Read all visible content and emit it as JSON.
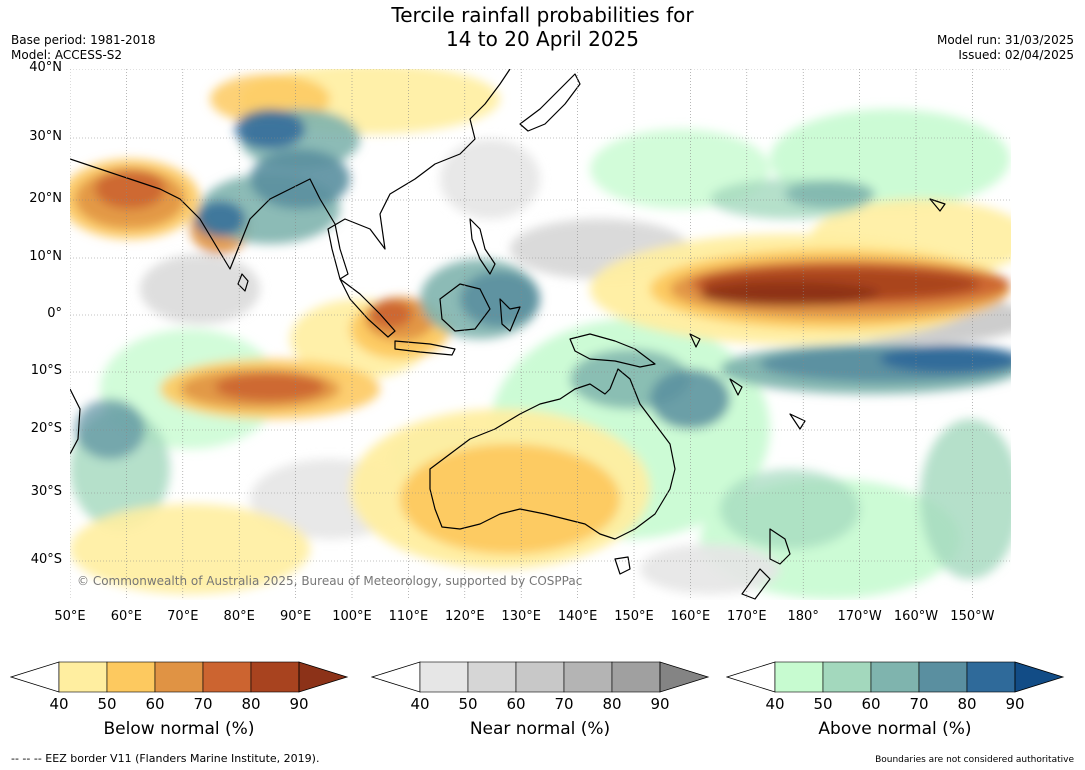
{
  "header": {
    "title_line1": "Tercile rainfall probabilities for",
    "title_line2": "14 to 20 April 2025",
    "base_period": "Base period: 1981-2018",
    "model": "Model: ACCESS-S2",
    "model_run": "Model run: 31/03/2025",
    "issued": "Issued: 02/04/2025"
  },
  "map": {
    "lat_labels": [
      "40°N",
      "30°N",
      "20°N",
      "10°N",
      "0°",
      "10°S",
      "20°S",
      "30°S",
      "40°S"
    ],
    "lon_labels": [
      "50°E",
      "60°E",
      "70°E",
      "80°E",
      "90°E",
      "100°E",
      "110°E",
      "120°E",
      "130°E",
      "140°E",
      "150°E",
      "160°E",
      "170°E",
      "180°",
      "170°W",
      "160°W",
      "150°W"
    ],
    "copyright": "© Commonwealth of Australia 2025, Bureau of Meteorology, supported by COSPPac"
  },
  "legend": {
    "below": {
      "label": "Below normal (%)",
      "ticks": [
        "40",
        "50",
        "60",
        "70",
        "80",
        "90"
      ],
      "colors": [
        "#ffeea0",
        "#fdc95f",
        "#e09344",
        "#cc6430",
        "#a8431f",
        "#8c3218"
      ]
    },
    "near": {
      "label": "Near normal (%)",
      "ticks": [
        "40",
        "50",
        "60",
        "70",
        "80",
        "90"
      ],
      "colors": [
        "#e6e6e6",
        "#d6d6d6",
        "#c8c8c8",
        "#b4b4b4",
        "#a0a0a0",
        "#848484"
      ]
    },
    "above": {
      "label": "Above normal (%)",
      "ticks": [
        "40",
        "50",
        "60",
        "70",
        "80",
        "90"
      ],
      "colors": [
        "#c7fbd0",
        "#a3d8bd",
        "#7fb4ae",
        "#5a8fa0",
        "#2f6a9a",
        "#124c86"
      ]
    }
  },
  "footer": {
    "eez": "--  --  -- EEZ border V11 (Flanders Marine Institute, 2019).",
    "disclaimer": "Boundaries are not considered authoritative"
  }
}
